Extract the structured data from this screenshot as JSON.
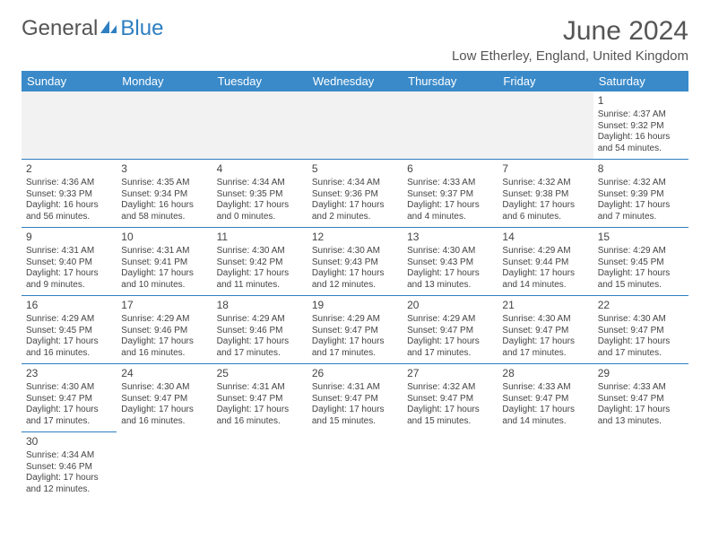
{
  "logo": {
    "general": "General",
    "blue": "Blue"
  },
  "title": "June 2024",
  "location": "Low Etherley, England, United Kingdom",
  "colors": {
    "header_bg": "#3a8ac9",
    "header_text": "#ffffff",
    "border": "#2d7fc1",
    "logo_blue": "#2d7fc1",
    "text": "#444444",
    "empty_bg": "#f2f2f2"
  },
  "weekdays": [
    "Sunday",
    "Monday",
    "Tuesday",
    "Wednesday",
    "Thursday",
    "Friday",
    "Saturday"
  ],
  "weeks": [
    [
      null,
      null,
      null,
      null,
      null,
      null,
      {
        "n": "1",
        "sr": "Sunrise: 4:37 AM",
        "ss": "Sunset: 9:32 PM",
        "dl": "Daylight: 16 hours and 54 minutes."
      }
    ],
    [
      {
        "n": "2",
        "sr": "Sunrise: 4:36 AM",
        "ss": "Sunset: 9:33 PM",
        "dl": "Daylight: 16 hours and 56 minutes."
      },
      {
        "n": "3",
        "sr": "Sunrise: 4:35 AM",
        "ss": "Sunset: 9:34 PM",
        "dl": "Daylight: 16 hours and 58 minutes."
      },
      {
        "n": "4",
        "sr": "Sunrise: 4:34 AM",
        "ss": "Sunset: 9:35 PM",
        "dl": "Daylight: 17 hours and 0 minutes."
      },
      {
        "n": "5",
        "sr": "Sunrise: 4:34 AM",
        "ss": "Sunset: 9:36 PM",
        "dl": "Daylight: 17 hours and 2 minutes."
      },
      {
        "n": "6",
        "sr": "Sunrise: 4:33 AM",
        "ss": "Sunset: 9:37 PM",
        "dl": "Daylight: 17 hours and 4 minutes."
      },
      {
        "n": "7",
        "sr": "Sunrise: 4:32 AM",
        "ss": "Sunset: 9:38 PM",
        "dl": "Daylight: 17 hours and 6 minutes."
      },
      {
        "n": "8",
        "sr": "Sunrise: 4:32 AM",
        "ss": "Sunset: 9:39 PM",
        "dl": "Daylight: 17 hours and 7 minutes."
      }
    ],
    [
      {
        "n": "9",
        "sr": "Sunrise: 4:31 AM",
        "ss": "Sunset: 9:40 PM",
        "dl": "Daylight: 17 hours and 9 minutes."
      },
      {
        "n": "10",
        "sr": "Sunrise: 4:31 AM",
        "ss": "Sunset: 9:41 PM",
        "dl": "Daylight: 17 hours and 10 minutes."
      },
      {
        "n": "11",
        "sr": "Sunrise: 4:30 AM",
        "ss": "Sunset: 9:42 PM",
        "dl": "Daylight: 17 hours and 11 minutes."
      },
      {
        "n": "12",
        "sr": "Sunrise: 4:30 AM",
        "ss": "Sunset: 9:43 PM",
        "dl": "Daylight: 17 hours and 12 minutes."
      },
      {
        "n": "13",
        "sr": "Sunrise: 4:30 AM",
        "ss": "Sunset: 9:43 PM",
        "dl": "Daylight: 17 hours and 13 minutes."
      },
      {
        "n": "14",
        "sr": "Sunrise: 4:29 AM",
        "ss": "Sunset: 9:44 PM",
        "dl": "Daylight: 17 hours and 14 minutes."
      },
      {
        "n": "15",
        "sr": "Sunrise: 4:29 AM",
        "ss": "Sunset: 9:45 PM",
        "dl": "Daylight: 17 hours and 15 minutes."
      }
    ],
    [
      {
        "n": "16",
        "sr": "Sunrise: 4:29 AM",
        "ss": "Sunset: 9:45 PM",
        "dl": "Daylight: 17 hours and 16 minutes."
      },
      {
        "n": "17",
        "sr": "Sunrise: 4:29 AM",
        "ss": "Sunset: 9:46 PM",
        "dl": "Daylight: 17 hours and 16 minutes."
      },
      {
        "n": "18",
        "sr": "Sunrise: 4:29 AM",
        "ss": "Sunset: 9:46 PM",
        "dl": "Daylight: 17 hours and 17 minutes."
      },
      {
        "n": "19",
        "sr": "Sunrise: 4:29 AM",
        "ss": "Sunset: 9:47 PM",
        "dl": "Daylight: 17 hours and 17 minutes."
      },
      {
        "n": "20",
        "sr": "Sunrise: 4:29 AM",
        "ss": "Sunset: 9:47 PM",
        "dl": "Daylight: 17 hours and 17 minutes."
      },
      {
        "n": "21",
        "sr": "Sunrise: 4:30 AM",
        "ss": "Sunset: 9:47 PM",
        "dl": "Daylight: 17 hours and 17 minutes."
      },
      {
        "n": "22",
        "sr": "Sunrise: 4:30 AM",
        "ss": "Sunset: 9:47 PM",
        "dl": "Daylight: 17 hours and 17 minutes."
      }
    ],
    [
      {
        "n": "23",
        "sr": "Sunrise: 4:30 AM",
        "ss": "Sunset: 9:47 PM",
        "dl": "Daylight: 17 hours and 17 minutes."
      },
      {
        "n": "24",
        "sr": "Sunrise: 4:30 AM",
        "ss": "Sunset: 9:47 PM",
        "dl": "Daylight: 17 hours and 16 minutes."
      },
      {
        "n": "25",
        "sr": "Sunrise: 4:31 AM",
        "ss": "Sunset: 9:47 PM",
        "dl": "Daylight: 17 hours and 16 minutes."
      },
      {
        "n": "26",
        "sr": "Sunrise: 4:31 AM",
        "ss": "Sunset: 9:47 PM",
        "dl": "Daylight: 17 hours and 15 minutes."
      },
      {
        "n": "27",
        "sr": "Sunrise: 4:32 AM",
        "ss": "Sunset: 9:47 PM",
        "dl": "Daylight: 17 hours and 15 minutes."
      },
      {
        "n": "28",
        "sr": "Sunrise: 4:33 AM",
        "ss": "Sunset: 9:47 PM",
        "dl": "Daylight: 17 hours and 14 minutes."
      },
      {
        "n": "29",
        "sr": "Sunrise: 4:33 AM",
        "ss": "Sunset: 9:47 PM",
        "dl": "Daylight: 17 hours and 13 minutes."
      }
    ],
    [
      {
        "n": "30",
        "sr": "Sunrise: 4:34 AM",
        "ss": "Sunset: 9:46 PM",
        "dl": "Daylight: 17 hours and 12 minutes."
      },
      null,
      null,
      null,
      null,
      null,
      null
    ]
  ]
}
